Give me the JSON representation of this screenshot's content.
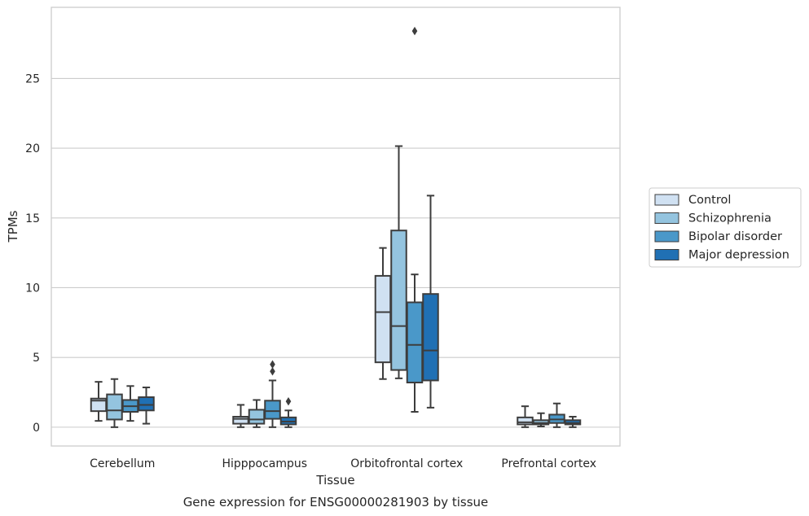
{
  "chart_data": {
    "type": "box",
    "xlabel": "Tissue",
    "ylabel": "TPMs",
    "caption": "Gene expression for ENSG00000281903 by tissue",
    "categories": [
      "Cerebellum",
      "Hipppocampus",
      "Orbitofrontal cortex",
      "Prefrontal cortex"
    ],
    "ylim": [
      -1.35,
      30.1
    ],
    "yticks": [
      0,
      5,
      10,
      15,
      20,
      25
    ],
    "grid": true,
    "legend_position": "right",
    "series": [
      {
        "name": "Control",
        "color": "#d0e1f2",
        "boxes": [
          {
            "whisker_low": 0.45,
            "q1": 1.15,
            "median": 1.9,
            "q3": 2.05,
            "whisker_high": 3.25,
            "outliers": []
          },
          {
            "whisker_low": 0.0,
            "q1": 0.25,
            "median": 0.6,
            "q3": 0.75,
            "whisker_high": 1.6,
            "outliers": []
          },
          {
            "whisker_low": 3.45,
            "q1": 4.65,
            "median": 8.25,
            "q3": 10.85,
            "whisker_high": 12.85,
            "outliers": []
          },
          {
            "whisker_low": 0.0,
            "q1": 0.2,
            "median": 0.35,
            "q3": 0.7,
            "whisker_high": 1.5,
            "outliers": []
          }
        ]
      },
      {
        "name": "Schizophrenia",
        "color": "#94c4df",
        "boxes": [
          {
            "whisker_low": 0.0,
            "q1": 0.55,
            "median": 1.2,
            "q3": 2.35,
            "whisker_high": 3.45,
            "outliers": []
          },
          {
            "whisker_low": 0.0,
            "q1": 0.25,
            "median": 0.55,
            "q3": 1.25,
            "whisker_high": 1.95,
            "outliers": []
          },
          {
            "whisker_low": 3.5,
            "q1": 4.1,
            "median": 7.25,
            "q3": 14.1,
            "whisker_high": 20.15,
            "outliers": []
          },
          {
            "whisker_low": 0.05,
            "q1": 0.2,
            "median": 0.3,
            "q3": 0.5,
            "whisker_high": 1.0,
            "outliers": []
          }
        ]
      },
      {
        "name": "Bipolar disorder",
        "color": "#4a98c9",
        "boxes": [
          {
            "whisker_low": 0.45,
            "q1": 1.1,
            "median": 1.5,
            "q3": 1.95,
            "whisker_high": 2.95,
            "outliers": []
          },
          {
            "whisker_low": 0.0,
            "q1": 0.6,
            "median": 1.15,
            "q3": 1.9,
            "whisker_high": 3.35,
            "outliers": [
              4.5,
              4.0
            ]
          },
          {
            "whisker_low": 1.1,
            "q1": 3.2,
            "median": 5.9,
            "q3": 8.95,
            "whisker_high": 10.95,
            "outliers": [
              28.4
            ]
          },
          {
            "whisker_low": 0.0,
            "q1": 0.3,
            "median": 0.55,
            "q3": 0.9,
            "whisker_high": 1.7,
            "outliers": []
          }
        ]
      },
      {
        "name": "Major depression",
        "color": "#2070b4",
        "boxes": [
          {
            "whisker_low": 0.25,
            "q1": 1.2,
            "median": 1.6,
            "q3": 2.15,
            "whisker_high": 2.85,
            "outliers": []
          },
          {
            "whisker_low": 0.0,
            "q1": 0.2,
            "median": 0.4,
            "q3": 0.7,
            "whisker_high": 1.2,
            "outliers": [
              1.85
            ]
          },
          {
            "whisker_low": 1.4,
            "q1": 3.35,
            "median": 5.5,
            "q3": 9.55,
            "whisker_high": 16.6,
            "outliers": []
          },
          {
            "whisker_low": 0.0,
            "q1": 0.2,
            "median": 0.3,
            "q3": 0.5,
            "whisker_high": 0.75,
            "outliers": []
          }
        ]
      }
    ]
  }
}
